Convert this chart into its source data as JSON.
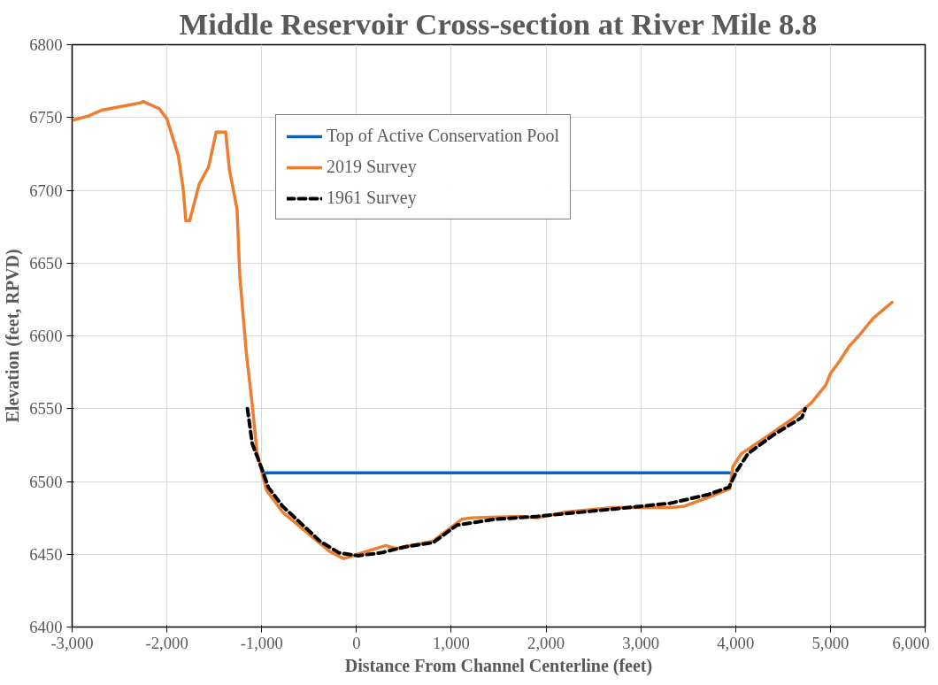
{
  "chart_data": {
    "type": "line",
    "title": "Middle Reservoir Cross-section at River Mile 8.8",
    "xlabel": "Distance From Channel Centerline (feet)",
    "ylabel": "Elevation (feet, RPVD)",
    "series": [
      {
        "name": "Top of Active Conservation Pool",
        "color": "#0066cc",
        "line_style": "solid",
        "x": [
          -960,
          3940
        ],
        "values": [
          6506,
          6506
        ]
      },
      {
        "name": "2019 Survey",
        "color": "#ed7d31",
        "line_style": "solid",
        "x": [
          -3000,
          -2830,
          -2690,
          -2280,
          -2250,
          -2080,
          -2000,
          -1880,
          -1830,
          -1800,
          -1760,
          -1660,
          -1560,
          -1480,
          -1380,
          -1340,
          -1260,
          -1230,
          -1160,
          -1100,
          -1050,
          -950,
          -780,
          -285,
          -135,
          110,
          310,
          410,
          810,
          1110,
          1210,
          1710,
          1910,
          2210,
          2710,
          3310,
          3460,
          3710,
          3940,
          3970,
          4060,
          4310,
          4600,
          4800,
          4950,
          5000,
          5100,
          5200,
          5300,
          5450,
          5650
        ],
        "values": [
          6748,
          6751,
          6755,
          6760,
          6761,
          6756,
          6749,
          6724,
          6702,
          6679,
          6679,
          6704,
          6716,
          6740,
          6740,
          6714,
          6687,
          6640,
          6587,
          6553,
          6520,
          6494,
          6479,
          6452,
          6447,
          6452,
          6456,
          6454,
          6459,
          6474,
          6475,
          6476,
          6475,
          6479,
          6482,
          6482,
          6483,
          6489,
          6495,
          6510,
          6519,
          6530,
          6543,
          6554,
          6566,
          6574,
          6583,
          6593,
          6600,
          6612,
          6623
        ]
      },
      {
        "name": "1961 Survey",
        "color": "#000000",
        "line_style": "dashed",
        "x": [
          -1150,
          -1100,
          -1000,
          -930,
          -780,
          -385,
          -185,
          15,
          260,
          510,
          810,
          1060,
          1460,
          1910,
          2710,
          3310,
          3710,
          3930,
          4010,
          4130,
          4400,
          4700,
          4735
        ],
        "values": [
          6550,
          6526,
          6509,
          6496,
          6483,
          6459,
          6451,
          6449,
          6451,
          6455,
          6458,
          6470,
          6474,
          6476,
          6481,
          6485,
          6491,
          6496,
          6507,
          6519,
          6532,
          6544,
          6550
        ]
      }
    ],
    "xlim": [
      -3000,
      6000
    ],
    "ylim": [
      6400,
      6800
    ],
    "xticks": [
      {
        "value": -3000,
        "label": "-3,000"
      },
      {
        "value": -2000,
        "label": "-2,000"
      },
      {
        "value": -1000,
        "label": "-1,000"
      },
      0,
      {
        "value": 1000,
        "label": "1,000"
      },
      {
        "value": 2000,
        "label": "2,000"
      },
      {
        "value": 3000,
        "label": "3,000"
      },
      {
        "value": 4000,
        "label": "4,000"
      },
      {
        "value": 5000,
        "label": "5,000"
      },
      {
        "value": 6000,
        "label": "6,000"
      }
    ],
    "yticks": [
      6400,
      6450,
      6500,
      6550,
      6600,
      6650,
      6700,
      6750,
      6800
    ],
    "grid": true,
    "legend": "top"
  }
}
